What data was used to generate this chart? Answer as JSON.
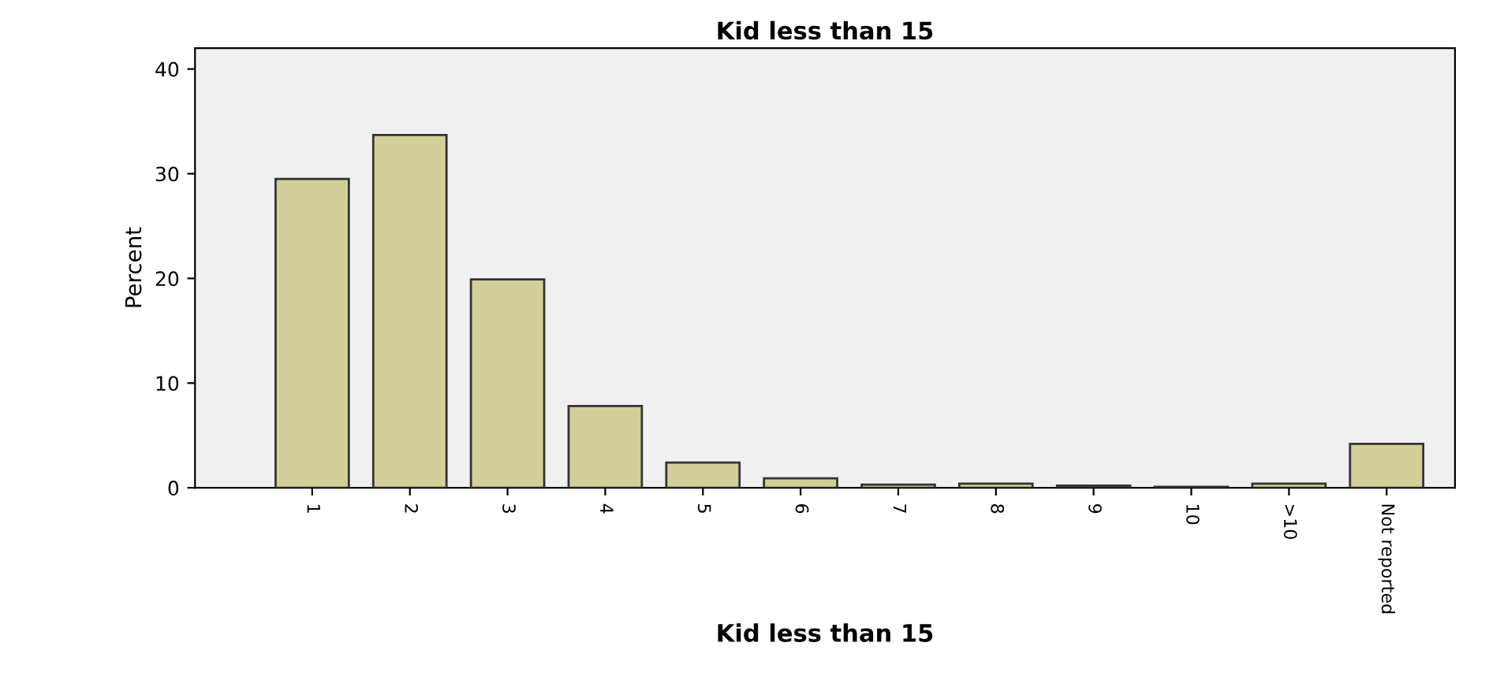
{
  "chart_data": {
    "type": "bar",
    "title": "Kid less than 15",
    "xlabel": "Kid less than 15",
    "ylabel": "Percent",
    "categories": [
      "1",
      "2",
      "3",
      "4",
      "5",
      "6",
      "7",
      "8",
      "9",
      "10",
      ">10",
      "Not reported"
    ],
    "values": [
      29.5,
      33.7,
      19.9,
      7.8,
      2.4,
      0.9,
      0.3,
      0.4,
      0.2,
      0.1,
      0.4,
      4.2
    ],
    "color": "#d3cf98",
    "ylim": [
      0,
      42
    ],
    "yticks": [
      0,
      10,
      20,
      30,
      40
    ],
    "grid": false,
    "legend": false
  }
}
